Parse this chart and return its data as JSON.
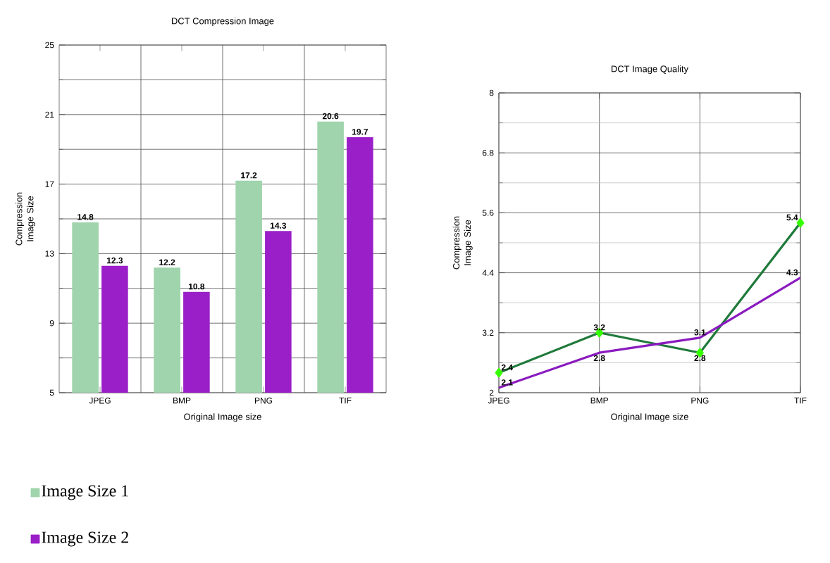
{
  "chart_data": [
    {
      "type": "bar",
      "title": "DCT Compression Image",
      "xlabel": "Original Image size",
      "ylabel": "Compression Image Size",
      "categories": [
        "JPEG",
        "BMP",
        "PNG",
        "TIF"
      ],
      "series": [
        {
          "name": "Image Size 1",
          "color": "#9fd4ac",
          "values": [
            14.8,
            12.2,
            17.2,
            20.6
          ]
        },
        {
          "name": "Image Size 2",
          "color": "#9a1fc8",
          "values": [
            12.3,
            10.8,
            14.3,
            19.7
          ]
        }
      ],
      "ylim": [
        5,
        25
      ],
      "yticks": [
        5,
        9,
        13,
        17,
        21,
        25
      ],
      "grid": true,
      "data_labels": true,
      "legend": "bottom left"
    },
    {
      "type": "line",
      "title": "DCT  Image Quality",
      "xlabel": "Original Image size",
      "ylabel": "Compression Image Size",
      "categories": [
        "JPEG",
        "BMP",
        "PNG",
        "TIF"
      ],
      "series": [
        {
          "color": "#1f7a3a",
          "values": [
            2.4,
            3.2,
            2.8,
            5.4
          ],
          "marker": "diamond"
        },
        {
          "color": "#8a1bbf",
          "values": [
            2.1,
            2.8,
            3.1,
            4.3
          ],
          "marker": "none"
        }
      ],
      "ylim": [
        2,
        8
      ],
      "yticks": [
        2,
        3.2,
        4.4,
        5.6,
        6.8,
        8
      ],
      "grid": true,
      "data_labels": true
    }
  ]
}
